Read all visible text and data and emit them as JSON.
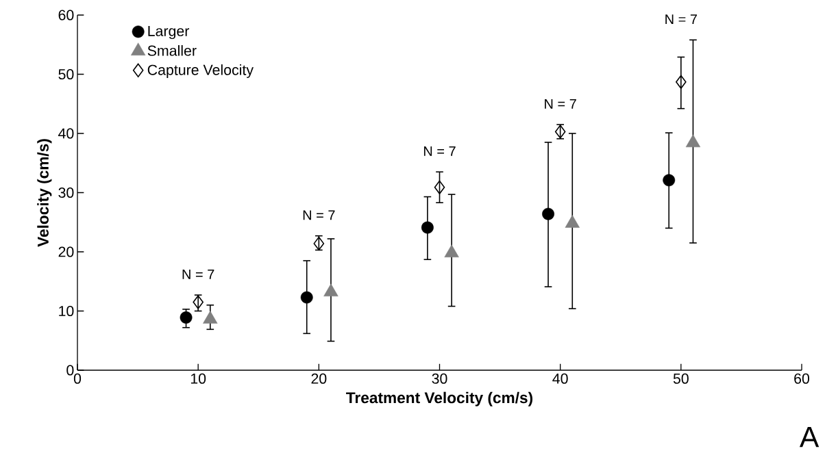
{
  "chart_data": {
    "type": "scatter",
    "xlabel": "Treatment Velocity (cm/s)",
    "ylabel": "Velocity (cm/s)",
    "xlim": [
      0,
      60
    ],
    "ylim": [
      0,
      60
    ],
    "xticks": [
      0,
      10,
      20,
      30,
      40,
      50,
      60
    ],
    "yticks": [
      0,
      10,
      20,
      30,
      40,
      50,
      60
    ],
    "grid": false,
    "legend": "top left",
    "series": [
      {
        "name": "Larger",
        "color": "#000000",
        "marker": "circle",
        "x": [
          9,
          19,
          29,
          39,
          49
        ],
        "values": [
          8.9,
          12.3,
          24.1,
          26.4,
          32.1
        ],
        "errors": [
          [
            7.2,
            10.3
          ],
          [
            6.2,
            18.5
          ],
          [
            18.7,
            29.3
          ],
          [
            14.1,
            38.5
          ],
          [
            24.0,
            40.1
          ]
        ]
      },
      {
        "name": "Smaller",
        "color": "#808080",
        "marker": "triangle",
        "x": [
          11,
          21,
          31,
          41,
          51
        ],
        "values": [
          8.6,
          13.2,
          19.8,
          24.8,
          38.4
        ],
        "errors": [
          [
            6.9,
            11.0
          ],
          [
            4.9,
            22.2
          ],
          [
            10.8,
            29.7
          ],
          [
            10.4,
            40.0
          ],
          [
            21.5,
            55.8
          ]
        ]
      },
      {
        "name": "Capture Velocity",
        "color": "#000000",
        "marker": "diamond",
        "x": [
          10,
          20,
          30,
          40,
          50
        ],
        "values": [
          11.5,
          21.4,
          30.9,
          40.3,
          48.7
        ],
        "errors": [
          [
            10.0,
            12.7
          ],
          [
            20.3,
            22.7
          ],
          [
            28.3,
            33.5
          ],
          [
            39.1,
            41.5
          ],
          [
            44.2,
            52.9
          ]
        ]
      }
    ],
    "annotations": [
      "N = 7",
      "N = 7",
      "N = 7",
      "N = 7",
      "N = 7",
      "A"
    ]
  }
}
